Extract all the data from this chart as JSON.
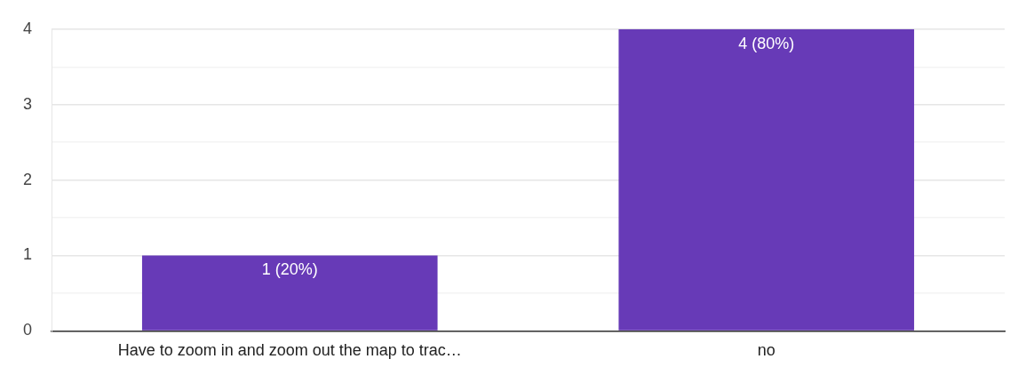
{
  "chart_data": {
    "type": "bar",
    "categories": [
      "Have to zoom in and zoom out the map to trac…",
      "no"
    ],
    "values": [
      1,
      4
    ],
    "color": "#673ab7",
    "value_labels": [
      "1 (20%)",
      "4 (80%)"
    ],
    "ylim": [
      0,
      4
    ],
    "yticks": [
      0,
      {
        "value": 0.5,
        "label": null
      },
      1,
      {
        "value": 1.5,
        "label": null
      },
      2,
      {
        "value": 2.5,
        "label": null
      },
      3,
      {
        "value": 3.5,
        "label": null
      },
      4
    ],
    "grid": "y"
  }
}
